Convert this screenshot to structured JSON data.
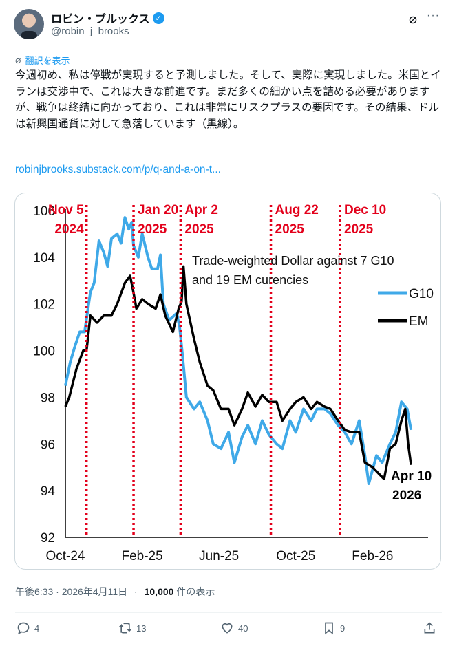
{
  "author": {
    "name": "ロビン・ブルックス",
    "handle": "@robin_j_brooks",
    "verified": true
  },
  "translate_label": "翻訳を表示",
  "tweet_text": "今週初め、私は停戦が実現すると予測しました。そして、実際に実現しました。米国とイランは交渉中で、これは大きな前進です。まだ多くの細かい点を詰める必要がありますが、戦争は終結に向かっており、これは非常にリスクプラスの要因です。その結果、ドルは新興国通貨に対して急落しています（黒線）。",
  "link": "robinjbrooks.substack.com/p/q-and-a-on-t...",
  "meta": {
    "time": "午後6:33 · 2026年4月11日",
    "separator": "·",
    "views": "10,000",
    "views_suffix": "件の表示"
  },
  "actions": {
    "replies": "4",
    "reposts": "13",
    "likes": "40",
    "bookmarks": "9"
  },
  "colors": {
    "accent": "#1d9bf0",
    "g10": "#3fa9e8",
    "em": "#000000",
    "event": "#e3001b"
  },
  "chart_data": {
    "type": "line",
    "title": "Trade-weighted Dollar against 7 G10",
    "title_line2": "and 19 EM curencies",
    "x_unit": "months since Oct 2024",
    "xlim": [
      0,
      20.1
    ],
    "ylim": [
      92,
      106
    ],
    "yticks": [
      92,
      94,
      96,
      98,
      100,
      102,
      104,
      106
    ],
    "xticks": [
      {
        "m": 0,
        "label": "Oct-24"
      },
      {
        "m": 4,
        "label": "Feb-25"
      },
      {
        "m": 8,
        "label": "Jun-25"
      },
      {
        "m": 12,
        "label": "Oct-25"
      },
      {
        "m": 16,
        "label": "Feb-26"
      }
    ],
    "events": [
      {
        "m": 1.1,
        "line1": "Nov 5",
        "line2": "2024",
        "side": "left"
      },
      {
        "m": 3.55,
        "line1": "Jan 20",
        "line2": "2025",
        "side": "right"
      },
      {
        "m": 6.0,
        "line1": "Apr 2",
        "line2": "2025",
        "side": "right"
      },
      {
        "m": 10.7,
        "line1": "Aug 22",
        "line2": "2025",
        "side": "right"
      },
      {
        "m": 14.3,
        "line1": "Dec 10",
        "line2": "2025",
        "side": "right"
      }
    ],
    "end_label": {
      "line1": "Apr 10",
      "line2": "2026"
    },
    "legend": "right",
    "series": [
      {
        "name": "G10",
        "x": [
          0,
          0.25,
          0.5,
          0.75,
          1.0,
          1.3,
          1.5,
          1.75,
          2.0,
          2.2,
          2.4,
          2.7,
          2.9,
          3.1,
          3.3,
          3.45,
          3.55,
          3.8,
          4.0,
          4.3,
          4.5,
          4.8,
          4.95,
          5.1,
          5.4,
          5.8,
          5.95,
          6.1,
          6.3,
          6.7,
          7.0,
          7.4,
          7.7,
          8.1,
          8.5,
          8.8,
          9.2,
          9.5,
          9.9,
          10.25,
          10.6,
          11.0,
          11.3,
          11.7,
          12.0,
          12.4,
          12.8,
          13.1,
          13.5,
          13.8,
          14.2,
          14.55,
          14.9,
          15.3,
          15.6,
          15.8,
          16.2,
          16.5,
          16.9,
          17.2,
          17.5,
          17.8,
          18.0
        ],
        "values": [
          98.5,
          99.5,
          100.2,
          100.8,
          100.8,
          102.5,
          102.9,
          104.7,
          104.2,
          103.6,
          104.8,
          105.0,
          104.6,
          105.7,
          105.2,
          105.5,
          104.5,
          104.0,
          105.0,
          104.0,
          103.5,
          103.5,
          104.1,
          102.0,
          101.3,
          101.6,
          101.0,
          99.8,
          98.0,
          97.5,
          97.8,
          97.0,
          96.0,
          95.8,
          96.5,
          95.2,
          96.3,
          96.8,
          96.0,
          97.0,
          96.4,
          96.0,
          95.8,
          97.0,
          96.5,
          97.5,
          97.0,
          97.5,
          97.5,
          97.3,
          96.8,
          96.5,
          96.0,
          97.0,
          95.5,
          94.3,
          95.5,
          95.2,
          96.0,
          96.5,
          97.8,
          97.5,
          96.6
        ]
      },
      {
        "name": "EM",
        "x": [
          0,
          0.2,
          0.57,
          0.93,
          1.1,
          1.3,
          1.65,
          2.0,
          2.4,
          2.7,
          3.1,
          3.37,
          3.5,
          3.7,
          4.0,
          4.3,
          4.7,
          4.95,
          5.2,
          5.6,
          5.9,
          6.05,
          6.15,
          6.3,
          6.7,
          7.0,
          7.4,
          7.7,
          8.1,
          8.5,
          8.8,
          9.2,
          9.5,
          9.9,
          10.25,
          10.6,
          11.0,
          11.3,
          11.7,
          12.0,
          12.4,
          12.8,
          13.1,
          13.5,
          13.8,
          14.2,
          14.55,
          14.9,
          15.3,
          15.6,
          16.0,
          16.35,
          16.6,
          16.9,
          17.2,
          17.5,
          17.7,
          17.85,
          18.0
        ],
        "values": [
          97.6,
          98.0,
          99.2,
          100.0,
          100.0,
          101.5,
          101.2,
          101.5,
          101.5,
          102.0,
          102.9,
          103.2,
          102.7,
          101.8,
          102.2,
          102.0,
          101.8,
          102.4,
          101.5,
          100.8,
          101.8,
          102.1,
          103.6,
          102.0,
          100.5,
          99.5,
          98.5,
          98.3,
          97.5,
          97.5,
          96.8,
          97.5,
          98.2,
          97.6,
          98.1,
          97.8,
          97.8,
          97.0,
          97.5,
          97.8,
          98.0,
          97.5,
          97.8,
          97.6,
          97.5,
          97.0,
          96.6,
          96.5,
          96.5,
          95.2,
          95.0,
          94.7,
          94.5,
          95.8,
          96.0,
          97.0,
          97.5,
          96.0,
          95.1
        ]
      }
    ]
  }
}
